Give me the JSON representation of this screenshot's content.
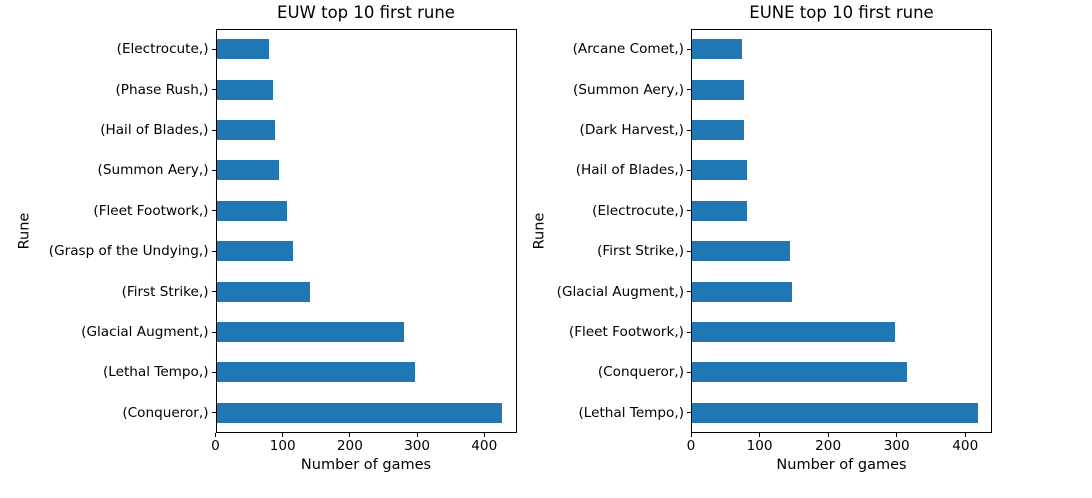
{
  "figure": {
    "background_color": "#ffffff",
    "bar_color": "#1f77b4",
    "axis_color": "#000000"
  },
  "chart_data": [
    {
      "type": "bar",
      "orientation": "horizontal",
      "title": "EUW top 10 first rune",
      "xlabel": "Number of games",
      "ylabel": "Rune",
      "categories_order": "top_to_bottom",
      "categories": [
        "(Electrocute,)",
        "(Phase Rush,)",
        "(Hail of Blades,)",
        "(Summon Aery,)",
        "(Fleet Footwork,)",
        "(Grasp of the Undying,)",
        "(First Strike,)",
        "(Glacial Augment,)",
        "(Lethal Tempo,)",
        "(Conqueror,)"
      ],
      "values": [
        79,
        85,
        89,
        95,
        106,
        115,
        140,
        280,
        297,
        427
      ],
      "xlim": [
        0,
        448
      ],
      "xticks": [
        "0",
        "100",
        "200",
        "300",
        "400"
      ],
      "xtick_values": [
        0,
        100,
        200,
        300,
        400
      ],
      "grid": false,
      "legend": "none"
    },
    {
      "type": "bar",
      "orientation": "horizontal",
      "title": "EUNE top 10 first rune",
      "xlabel": "Number of games",
      "ylabel": "Rune",
      "categories_order": "top_to_bottom",
      "categories": [
        "(Arcane Comet,)",
        "(Summon Aery,)",
        "(Dark Harvest,)",
        "(Hail of Blades,)",
        "(Electrocute,)",
        "(First Strike,)",
        "(Glacial Augment,)",
        "(Fleet Footwork,)",
        "(Conqueror,)",
        "(Lethal Tempo,)"
      ],
      "values": [
        75,
        77,
        78,
        81,
        82,
        145,
        148,
        298,
        315,
        418
      ],
      "xlim": [
        0,
        439
      ],
      "xticks": [
        "0",
        "100",
        "200",
        "300",
        "400"
      ],
      "xtick_values": [
        0,
        100,
        200,
        300,
        400
      ],
      "grid": false,
      "legend": "none"
    }
  ]
}
